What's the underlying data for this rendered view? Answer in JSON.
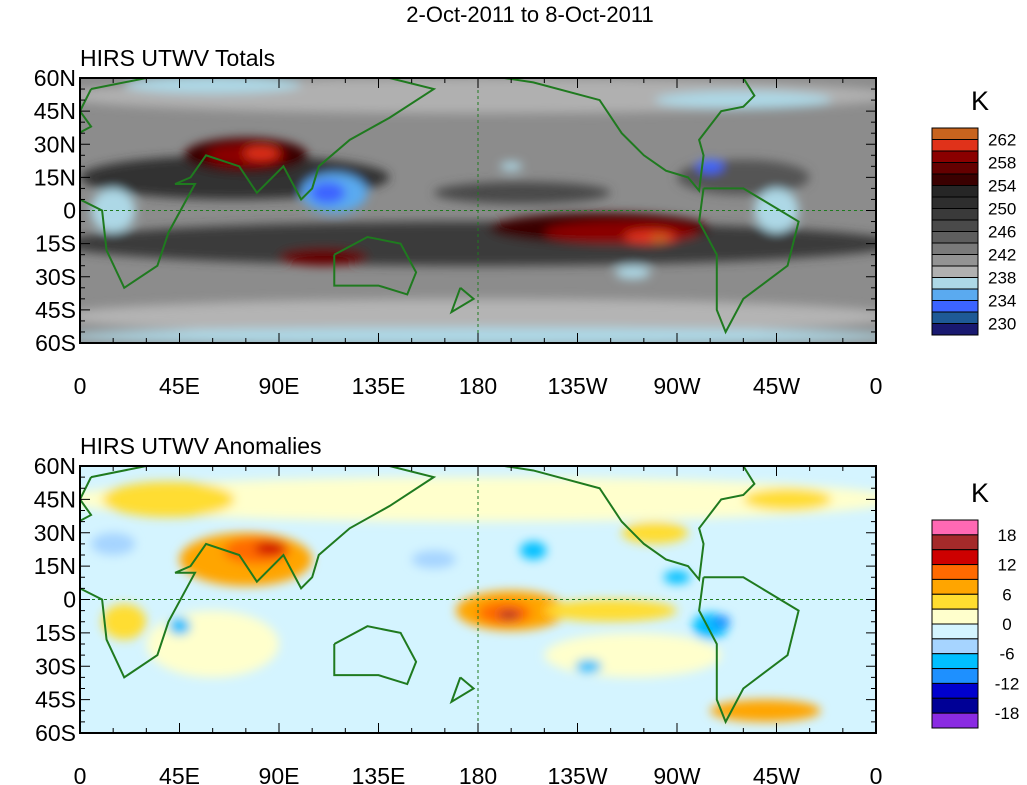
{
  "title": "2-Oct-2011 to 8-Oct-2011",
  "chart_data": [
    {
      "type": "heatmap",
      "title": "HIRS UTWV Totals",
      "units_label": "K",
      "x_ticks": [
        "0",
        "45E",
        "90E",
        "135E",
        "180",
        "135W",
        "90W",
        "45W",
        "0"
      ],
      "y_ticks": [
        "60N",
        "45N",
        "30N",
        "15N",
        "0",
        "15S",
        "30S",
        "45S",
        "60S"
      ],
      "xlim": [
        0,
        360
      ],
      "ylim": [
        -60,
        60
      ],
      "colorbar": {
        "labels": [
          "262",
          "258",
          "254",
          "250",
          "246",
          "242",
          "238",
          "234",
          "230"
        ],
        "colors": [
          "#c8641e",
          "#e0321a",
          "#8b0000",
          "#640000",
          "#3a0000",
          "#262626",
          "#2e2e2e",
          "#3a3a3a",
          "#4a4a4a",
          "#5e5e5e",
          "#7a7a7a",
          "#939393",
          "#b0b0b0",
          "#add8e6",
          "#5aaaf0",
          "#3c64ff",
          "#1e5a96",
          "#191970"
        ]
      }
    },
    {
      "type": "heatmap",
      "title": "HIRS UTWV Anomalies",
      "units_label": "K",
      "x_ticks": [
        "0",
        "45E",
        "90E",
        "135E",
        "180",
        "135W",
        "90W",
        "45W",
        "0"
      ],
      "y_ticks": [
        "60N",
        "45N",
        "30N",
        "15N",
        "0",
        "15S",
        "30S",
        "45S",
        "60S"
      ],
      "xlim": [
        0,
        360
      ],
      "ylim": [
        -60,
        60
      ],
      "colorbar": {
        "labels": [
          "18",
          "12",
          "6",
          "0",
          "-6",
          "-12",
          "-18"
        ],
        "colors": [
          "#ff69b4",
          "#a52a2a",
          "#cd0000",
          "#ff6a00",
          "#ffa500",
          "#ffdd30",
          "#ffffcc",
          "#d4f4ff",
          "#a6d4ff",
          "#00bfff",
          "#1e90ff",
          "#0000cd",
          "#000096",
          "#8a2be2"
        ]
      }
    }
  ]
}
